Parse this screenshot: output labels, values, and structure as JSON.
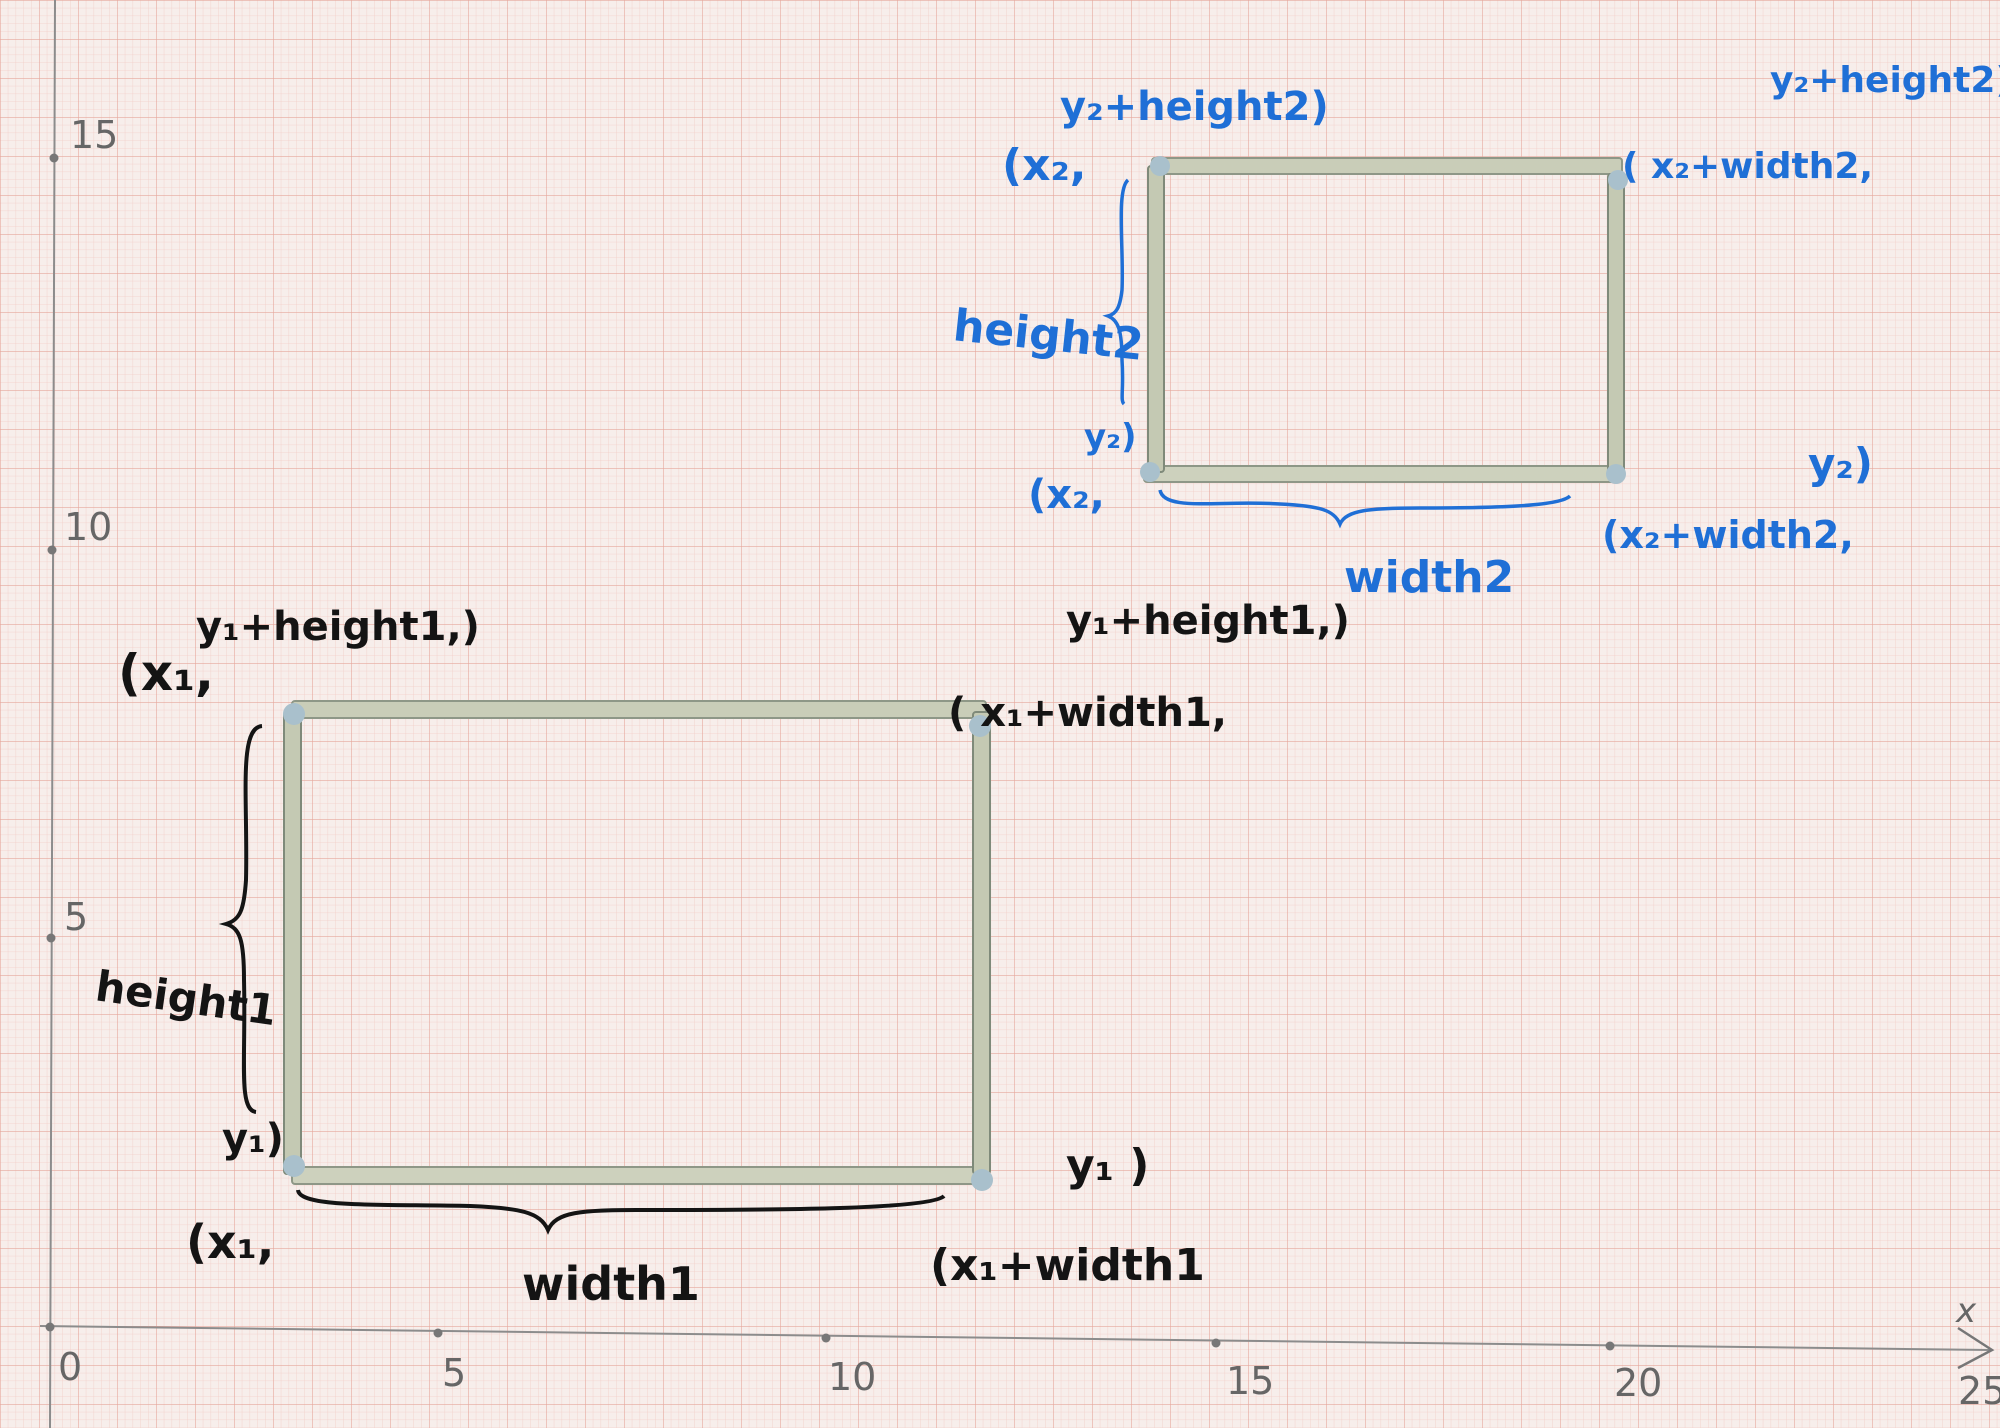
{
  "colors": {
    "paper": "#f7eeeb",
    "grid_minor": "#f0c7c0",
    "grid_major": "#e39b8f",
    "axis": "#8c8c8c",
    "stick": "#c9cdb8",
    "ink_black": "#141414",
    "ink_blue": "#1f6fd6"
  },
  "axes": {
    "x_ticks": [
      "0",
      "5",
      "10",
      "15",
      "20",
      "25"
    ],
    "y_ticks": [
      "5",
      "10",
      "15"
    ],
    "x_axis_label": "x"
  },
  "rect1_labels": {
    "top_left_x": "(x₁,",
    "top_left_y": "y₁+height1,)",
    "top_right_x": "( x₁+width1,",
    "top_right_y": "y₁+height1,)",
    "bottom_left_x": "(x₁,",
    "bottom_left_y": "y₁)",
    "bottom_right_x": "(x₁+width1",
    "bottom_right_y": "y₁ )",
    "height": "height1",
    "width": "width1"
  },
  "rect2_labels": {
    "top_left_x": "(x₂,",
    "top_left_y": "y₂+height2)",
    "top_right_x": "( x₂+width2,",
    "top_right_y": "y₂+height2)",
    "bottom_left_x": "(x₂,",
    "bottom_left_y": "y₂)",
    "bottom_right_x": "(x₂+width2,",
    "bottom_right_y": "y₂)",
    "height": "height2",
    "width": "width2"
  }
}
